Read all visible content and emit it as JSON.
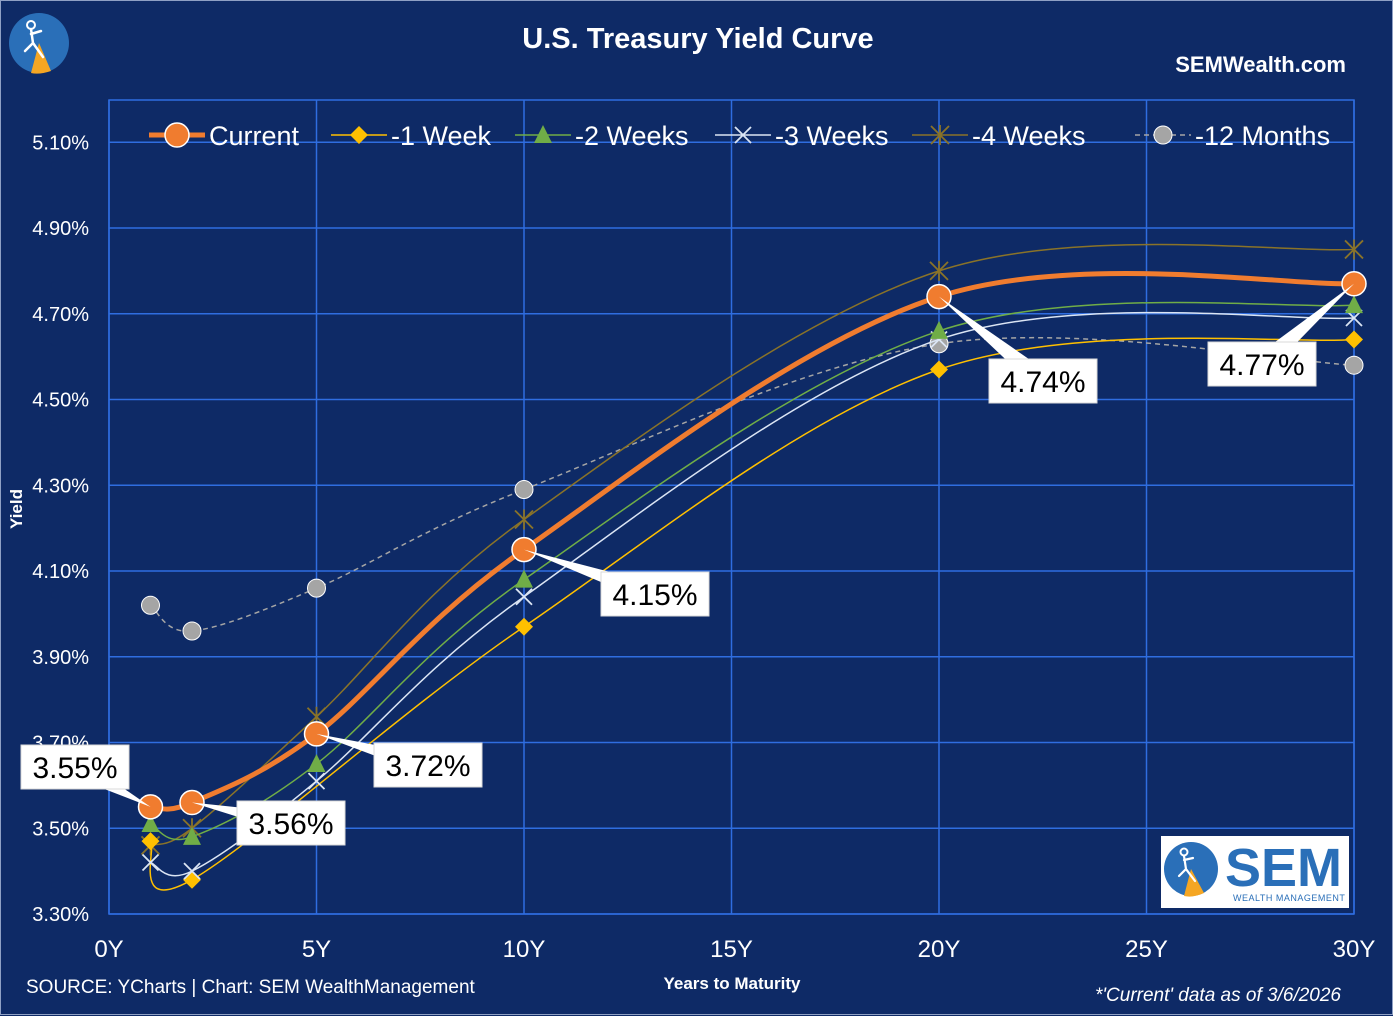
{
  "chart_data": {
    "type": "line",
    "title": "U.S. Treasury Yield Curve",
    "brand": "SEMWealth.com",
    "xlabel": "Years to Maturity",
    "ylabel": "Yield",
    "source": "SOURCE: YCharts | Chart: SEM WealthManagement",
    "note": "*'Current' data as of 3/6/2026",
    "x_ticks": [
      "0Y",
      "5Y",
      "10Y",
      "15Y",
      "20Y",
      "25Y",
      "30Y"
    ],
    "y_ticks": [
      "3.30%",
      "3.50%",
      "3.70%",
      "3.90%",
      "4.10%",
      "4.30%",
      "4.50%",
      "4.70%",
      "4.90%",
      "5.10%"
    ],
    "xlim": [
      0,
      30
    ],
    "ylim": [
      3.3,
      5.2
    ],
    "grid": true,
    "legend_position": "top",
    "x": [
      1,
      2,
      5,
      10,
      20,
      30
    ],
    "series": [
      {
        "name": "Current",
        "values": [
          3.55,
          3.56,
          3.72,
          4.15,
          4.74,
          4.77
        ],
        "color": "#f07c2f"
      },
      {
        "name": "-1 Week",
        "values": [
          3.47,
          3.38,
          null,
          3.97,
          4.57,
          4.64
        ],
        "color": "#ffc000"
      },
      {
        "name": "-2 Weeks",
        "values": [
          3.51,
          3.48,
          3.65,
          4.08,
          4.66,
          4.72
        ],
        "color": "#70ad47"
      },
      {
        "name": "-3 Weeks",
        "values": [
          3.42,
          3.4,
          3.61,
          4.04,
          4.64,
          4.69
        ],
        "color": "#dbe5f4"
      },
      {
        "name": "-4 Weeks",
        "values": [
          3.46,
          3.5,
          3.76,
          4.22,
          4.8,
          4.85
        ],
        "color": "#8a7328"
      },
      {
        "name": "-12 Months",
        "values": [
          4.02,
          3.96,
          4.06,
          4.29,
          4.63,
          4.58
        ],
        "color": "#a5a5a5"
      }
    ],
    "callouts": [
      {
        "label": "3.55%",
        "x": 1,
        "y": 3.55
      },
      {
        "label": "3.56%",
        "x": 2,
        "y": 3.56
      },
      {
        "label": "3.72%",
        "x": 5,
        "y": 3.72
      },
      {
        "label": "4.15%",
        "x": 10,
        "y": 4.15
      },
      {
        "label": "4.74%",
        "x": 20,
        "y": 4.74
      },
      {
        "label": "4.77%",
        "x": 30,
        "y": 4.77
      }
    ]
  },
  "logo": {
    "main": "SEM",
    "sub": "WEALTH MANAGEMENT",
    "colors": {
      "blue": "#2a6fb8",
      "orange": "#f5a623",
      "bg": "#ffffff"
    }
  },
  "colors": {
    "background": "#0e2a66",
    "grid": "#2f6de0",
    "text": "#ffffff"
  }
}
